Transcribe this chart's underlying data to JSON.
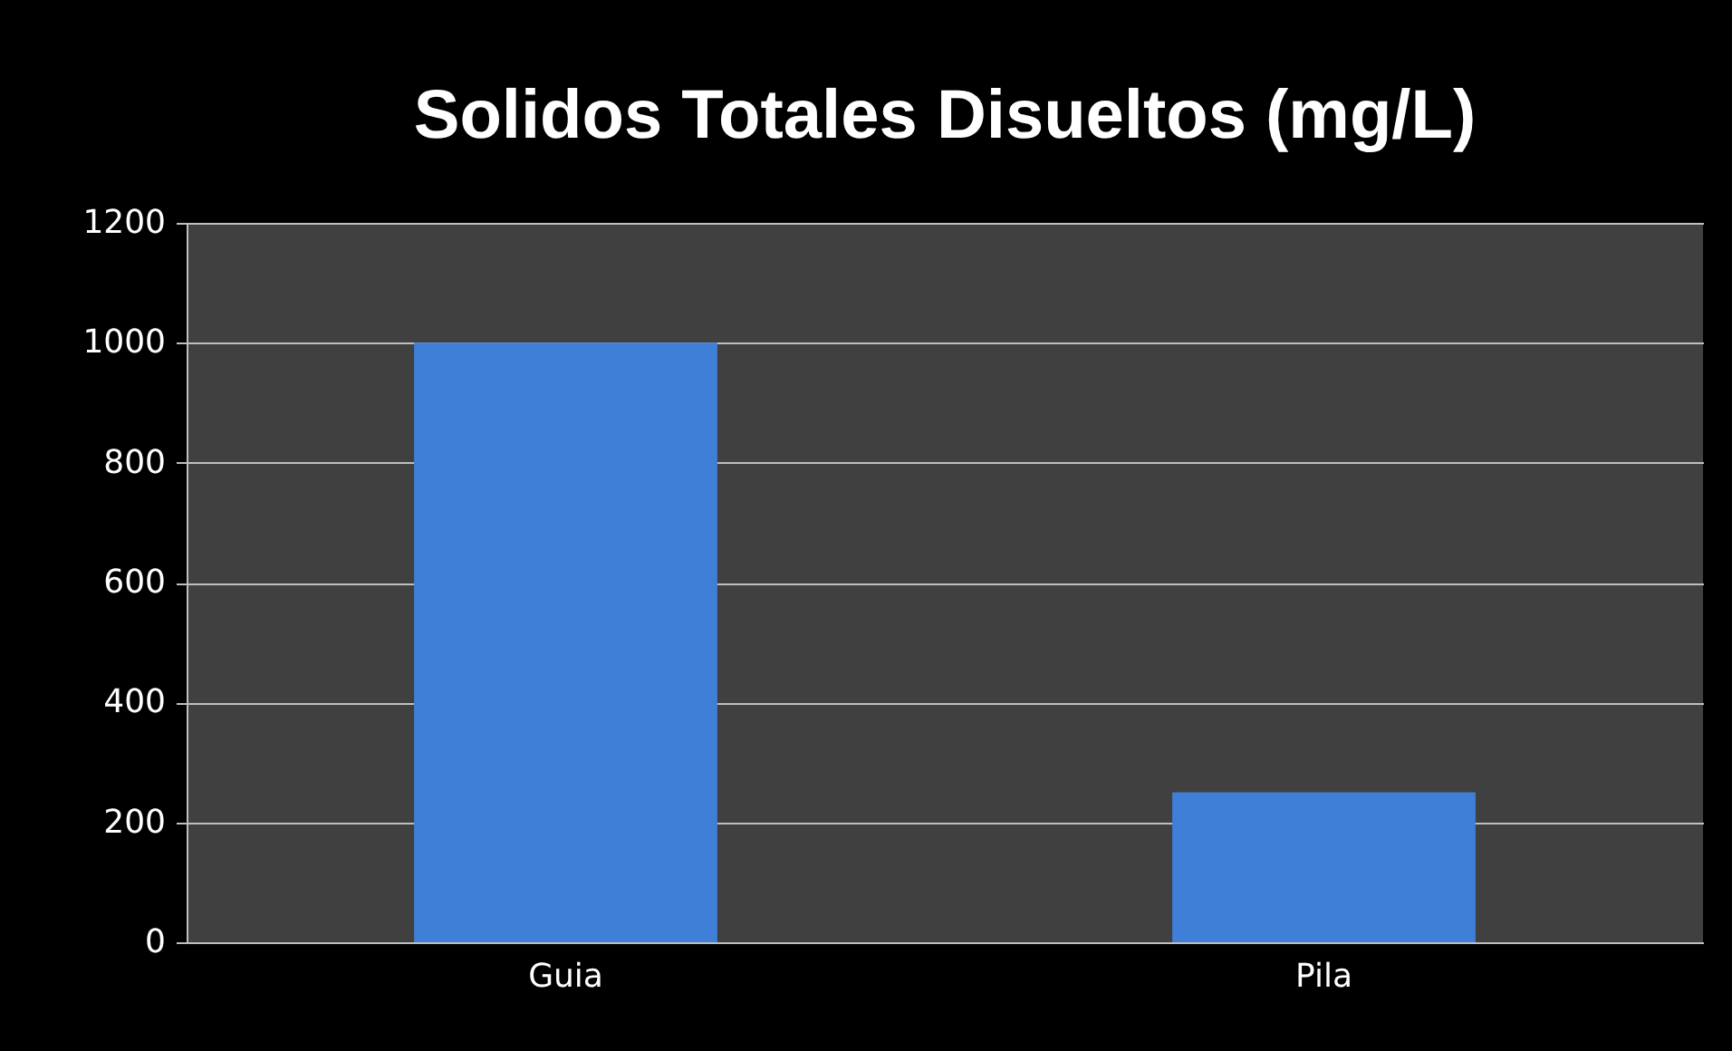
{
  "chart_data": {
    "type": "bar",
    "title": "Solidos Totales Disueltos (mg/L)",
    "categories": [
      "Guia",
      "Pila"
    ],
    "values": [
      1000,
      250
    ],
    "color": "#3f7fd8",
    "ylim": [
      0,
      1200
    ],
    "yticks": [
      0,
      200,
      400,
      600,
      800,
      1000,
      1200
    ],
    "grid": "y"
  }
}
